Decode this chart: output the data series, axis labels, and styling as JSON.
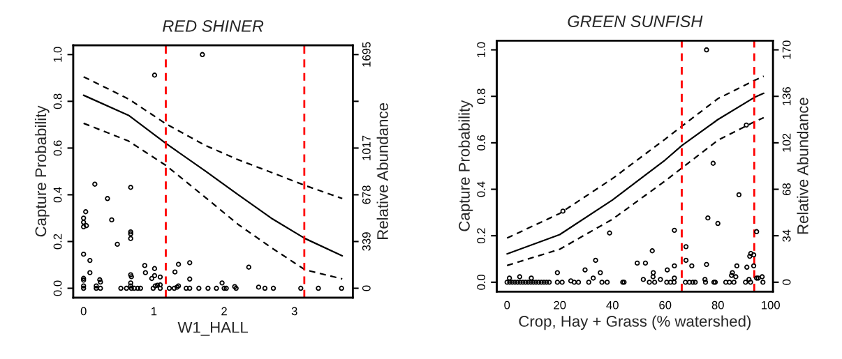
{
  "chart_data": [
    {
      "type": "line",
      "title": "RED SHINER",
      "xlabel": "W1_HALL",
      "ylabel": "Capture Probability",
      "y2label": "Relative Abundance",
      "xlim": [
        -0.147,
        3.83
      ],
      "xticks": [
        0,
        1,
        2,
        3
      ],
      "ylim": [
        -0.04,
        1.04
      ],
      "yticks": [
        {
          "value": 0,
          "label": "0.0"
        },
        {
          "value": 0.2,
          "label": "0.2"
        },
        {
          "value": 0.4,
          "label": "0.4"
        },
        {
          "value": 0.6,
          "label": "0.6"
        },
        {
          "value": 0.8,
          "label": "0.8"
        },
        {
          "value": 1,
          "label": "1.0"
        }
      ],
      "y2lim": [
        -67.8,
        1762.8
      ],
      "y2ticks": [
        0,
        339,
        678,
        1017,
        {
          "value": 1356,
          "label": null
        },
        1695
      ],
      "ref_lines": [
        {
          "axis": "x",
          "value": 1.17,
          "color": "#ff0000",
          "line_style": "dashed"
        },
        {
          "axis": "x",
          "value": 3.14,
          "color": "#ff0000",
          "line_style": "dashed"
        }
      ],
      "series": [
        {
          "line_style": "solid",
          "color": "#000000",
          "x": [
            0,
            0.64,
            1.17,
            1.74,
            2.2,
            2.67,
            3.15,
            3.68
          ],
          "values": [
            0.826,
            0.74,
            0.62,
            0.5,
            0.4,
            0.3,
            0.213,
            0.139
          ]
        },
        {
          "line_style": "dashed",
          "color": "#000000",
          "x": [
            0,
            0.64,
            1.17,
            1.74,
            2.2,
            2.67,
            3.15,
            3.68
          ],
          "values": [
            0.905,
            0.81,
            0.704,
            0.61,
            0.55,
            0.496,
            0.44,
            0.384
          ]
        },
        {
          "line_style": "dashed",
          "color": "#000000",
          "x": [
            0,
            0.64,
            1.17,
            1.74,
            2.2,
            2.67,
            3.15,
            3.68
          ],
          "values": [
            0.706,
            0.63,
            0.526,
            0.387,
            0.273,
            0.174,
            0.079,
            0.04
          ]
        },
        {
          "type": "scatter",
          "axis": "y2",
          "marker": "circle",
          "color": "#000000",
          "x": [
            1.69,
            1.01,
            0.16,
            0.67,
            0.34,
            0.03,
            0,
            0,
            0.04,
            0,
            0.4,
            0.67,
            0.67,
            0.67,
            0.48,
            0,
            0.09,
            0.09,
            0,
            0,
            0.23,
            0.24,
            0,
            0,
            0.18,
            0.18,
            0.24,
            0.53,
            0.61,
            0.67,
            0.68,
            0.67,
            0.67,
            0.68,
            0.72,
            0.77,
            0.81,
            0.87,
            0.88,
            1.01,
            1.01,
            0.97,
            1.09,
            1.02,
            1.05,
            1.09,
            0.99,
            1.09,
            1.22,
            1.29,
            1.33,
            1.35,
            1.3,
            1.35,
            1.51,
            1.51,
            1.46,
            1.51,
            1.64,
            1.77,
            1.89,
            1.97,
            2.0,
            2.03,
            2.15,
            2.17,
            2.35,
            2.49,
            2.58,
            2.7,
            3.09,
            3.34,
            3.67
          ],
          "values": [
            1695,
            1546,
            755,
            732,
            651,
            555,
            509,
            479,
            454,
            446,
            496,
            409,
            395,
            361,
            319,
            247,
            202,
            113,
            72,
            59,
            62,
            45,
            17,
            0,
            17,
            0,
            0,
            0,
            0,
            98,
            84,
            39,
            17,
            0,
            0,
            0,
            0,
            165,
            113,
            143,
            92,
            71,
            82,
            17,
            22,
            25,
            0,
            0,
            0,
            0,
            8,
            17,
            118,
            174,
            185,
            67,
            0,
            0,
            0,
            0,
            0,
            39,
            0,
            0,
            12,
            0,
            153,
            8,
            0,
            0,
            0,
            0,
            0
          ]
        }
      ]
    },
    {
      "type": "line",
      "title": "GREEN SUNFISH",
      "xlabel": "Crop, Hay + Grass (% watershed)",
      "ylabel": "Capture Probability",
      "y2label": "Relative Abundance",
      "xlim": [
        -3.9,
        100.9
      ],
      "xticks": [
        0,
        20,
        40,
        60,
        80,
        100
      ],
      "ylim": [
        -0.04,
        1.04
      ],
      "yticks": [
        {
          "value": 0,
          "label": "0.0"
        },
        {
          "value": 0.2,
          "label": "0.2"
        },
        {
          "value": 0.4,
          "label": "0.4"
        },
        {
          "value": 0.6,
          "label": "0.6"
        },
        {
          "value": 0.8,
          "label": "0.8"
        },
        {
          "value": 1,
          "label": "1.0"
        }
      ],
      "y2lim": [
        -6.8,
        176.8
      ],
      "y2ticks": [
        0,
        34,
        68,
        102,
        136,
        170
      ],
      "ref_lines": [
        {
          "axis": "x",
          "value": 66.3,
          "color": "#ff0000",
          "line_style": "dashed"
        },
        {
          "axis": "x",
          "value": 93.8,
          "color": "#ff0000",
          "line_style": "dashed"
        }
      ],
      "series": [
        {
          "line_style": "solid",
          "color": "#000000",
          "x": [
            0,
            20,
            40,
            60,
            66.3,
            80,
            93.8,
            97.4
          ],
          "values": [
            0.122,
            0.205,
            0.354,
            0.526,
            0.588,
            0.7,
            0.795,
            0.813
          ]
        },
        {
          "line_style": "dashed",
          "color": "#000000",
          "x": [
            0,
            20,
            40,
            60,
            66.3,
            80,
            93.8,
            97.4
          ],
          "values": [
            0.19,
            0.296,
            0.446,
            0.616,
            0.671,
            0.79,
            0.868,
            0.887
          ]
        },
        {
          "line_style": "dashed",
          "color": "#000000",
          "x": [
            0,
            20,
            40,
            60,
            66.3,
            80,
            93.8,
            97.4
          ],
          "values": [
            0.072,
            0.142,
            0.271,
            0.436,
            0.491,
            0.611,
            0.69,
            0.708
          ]
        },
        {
          "type": "scatter",
          "axis": "y2",
          "marker": "circle",
          "color": "#000000",
          "x": [
            75.7,
            90.8,
            78.2,
            88.0,
            76.2,
            80.0,
            21.2,
            38.9,
            63.5,
            94.7,
            67.9,
            55.1,
            67.9,
            33.6,
            92.5,
            93.6,
            92.1,
            49.4,
            52.5,
            75.7,
            70.1,
            63.5,
            87.2,
            91.0,
            93.6,
            29.6,
            60.8,
            35.4,
            19.1,
            55.5,
            85.5,
            85.2,
            86.8,
            96.8,
            94.7,
            95.3,
            32.7,
            63.5,
            55.4,
            51.7,
            58.2,
            4.8,
            0.9,
            9.2,
            24.2,
            75.1,
            91.8,
            0,
            1,
            2,
            3,
            4,
            5,
            6,
            7,
            8,
            9,
            10,
            11,
            12,
            13,
            14,
            15,
            16,
            19.1,
            20.9,
            25.5,
            27.1,
            31.0,
            36.0,
            38.0,
            43.9,
            44.4,
            54.0,
            56.0,
            60.6,
            62.0,
            63.4,
            67.7,
            69.2,
            70.5,
            71.4,
            75.3,
            78.5,
            79.0,
            83.0,
            84.4,
            86.1,
            90.5,
            92.4,
            97.1
          ],
          "values": [
            170,
            115,
            87,
            64,
            47,
            43,
            52,
            36,
            38,
            37,
            26,
            23,
            16,
            16,
            21,
            20,
            19,
            14,
            14,
            13,
            12,
            12,
            12,
            11,
            12,
            9,
            9,
            7,
            7,
            7,
            7,
            5,
            4,
            4,
            3,
            3,
            3,
            3,
            4,
            2,
            2,
            4,
            3,
            3,
            1,
            2,
            2,
            0,
            0,
            0,
            0,
            0,
            0,
            0,
            0,
            0,
            0,
            0,
            0,
            0,
            0,
            0,
            0,
            0,
            0,
            0,
            0,
            0,
            0,
            0,
            0,
            0,
            0,
            0,
            0,
            0,
            0,
            0,
            0,
            0,
            0,
            0,
            0,
            0,
            0,
            0,
            0,
            0,
            0,
            0,
            0
          ]
        }
      ]
    }
  ]
}
